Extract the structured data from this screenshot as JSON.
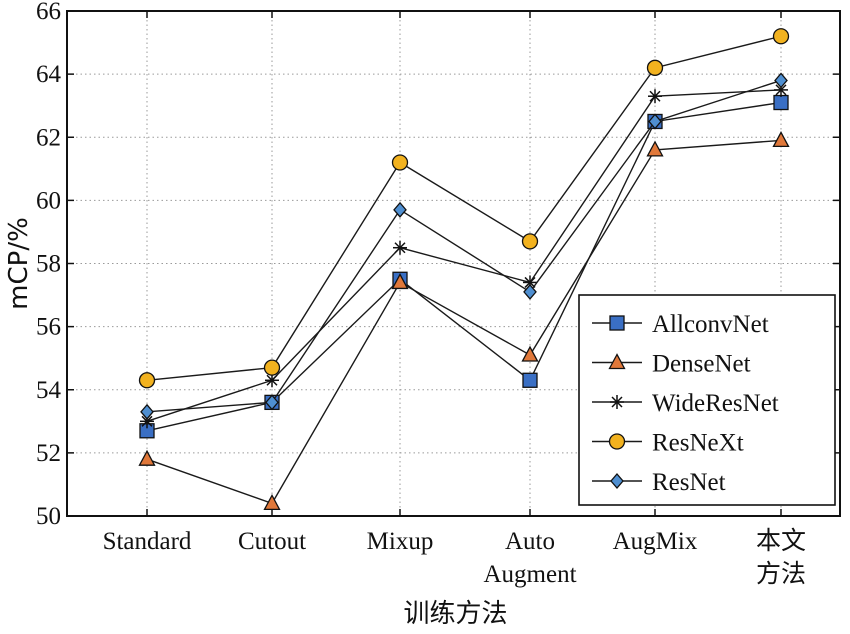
{
  "chart_data": {
    "type": "line",
    "title": "",
    "xlabel": "训练方法",
    "ylabel": "mCP/%",
    "ylim": [
      50,
      66
    ],
    "yticks": [
      50,
      52,
      54,
      56,
      58,
      60,
      62,
      64,
      66
    ],
    "grid": true,
    "legend_position": "bottom-right",
    "categories": [
      [
        "Standard"
      ],
      [
        "Cutout"
      ],
      [
        "Mixup"
      ],
      [
        "Auto",
        "Augment"
      ],
      [
        "AugMix"
      ],
      [
        "本文",
        "方法"
      ]
    ],
    "series": [
      {
        "name": "AllconvNet",
        "marker": "square",
        "color": "#3a6fc4",
        "values": [
          52.7,
          53.6,
          57.5,
          54.3,
          62.5,
          63.1
        ]
      },
      {
        "name": "DenseNet",
        "marker": "triangle",
        "color": "#e0783a",
        "values": [
          51.8,
          50.4,
          57.4,
          55.1,
          61.6,
          61.9
        ]
      },
      {
        "name": "WideResNet",
        "marker": "asterisk",
        "color": "#222222",
        "values": [
          53.0,
          54.3,
          58.5,
          57.4,
          63.3,
          63.5
        ]
      },
      {
        "name": "ResNeXt",
        "marker": "circle",
        "color": "#f2b21f",
        "values": [
          54.3,
          54.7,
          61.2,
          58.7,
          64.2,
          65.2
        ]
      },
      {
        "name": "ResNet",
        "marker": "diamond",
        "color": "#4f8fd1",
        "values": [
          53.3,
          53.6,
          59.7,
          57.1,
          62.5,
          63.8
        ]
      }
    ]
  }
}
